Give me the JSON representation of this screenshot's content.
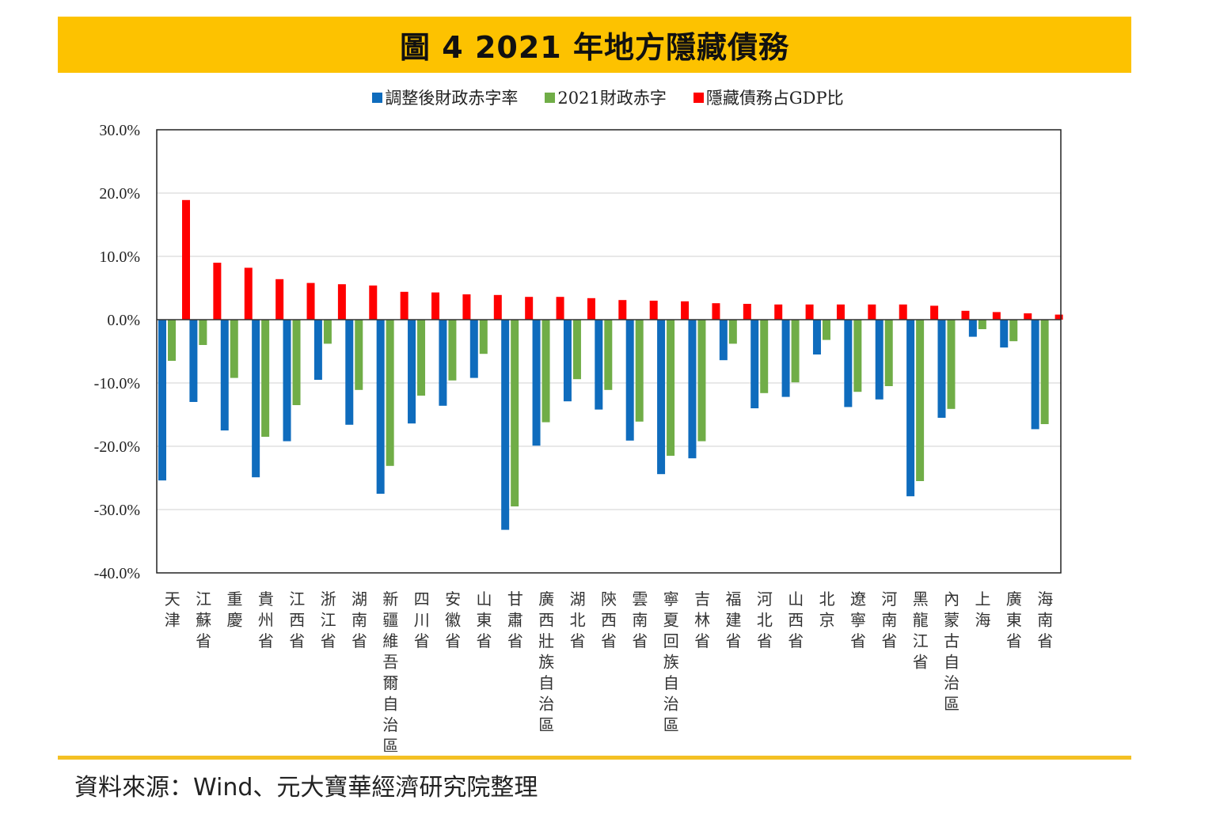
{
  "header": {
    "title": "圖 4 2021 年地方隱藏債務"
  },
  "footer": {
    "source": "資料來源：Wind、元大寶華經濟研究院整理"
  },
  "colors": {
    "header_bg": "#fdc200",
    "footer_rule": "#f4c024"
  },
  "chart_data": {
    "type": "bar",
    "title": "圖 4 2021 年地方隱藏債務",
    "xlabel": "",
    "ylabel": "",
    "ylim": [
      -40,
      30
    ],
    "yticks": [
      30,
      20,
      10,
      0,
      -10,
      -20,
      -30,
      -40
    ],
    "ytick_labels": [
      "30.0%",
      "20.0%",
      "10.0%",
      "0.0%",
      "-10.0%",
      "-20.0%",
      "-30.0%",
      "-40.0%"
    ],
    "grid": true,
    "legend_position": "top",
    "categories": [
      "天津",
      "江蘇省",
      "重慶",
      "貴州省",
      "江西省",
      "浙江省",
      "湖南省",
      "新疆維吾爾自治區",
      "四川省",
      "安徽省",
      "山東省",
      "甘肅省",
      "廣西壯族自治區",
      "湖北省",
      "陝西省",
      "雲南省",
      "寧夏回族自治區",
      "吉林省",
      "福建省",
      "河北省",
      "山西省",
      "北京",
      "遼寧省",
      "河南省",
      "黑龍江省",
      "內蒙古自治區",
      "上海",
      "廣東省",
      "海南省"
    ],
    "series": [
      {
        "name": "調整後財政赤字率",
        "color": "#0f6cbd",
        "values": [
          -25.4,
          -13.0,
          -17.5,
          -24.9,
          -19.2,
          -9.5,
          -16.6,
          -27.5,
          -16.4,
          -13.6,
          -9.2,
          -33.2,
          -19.9,
          -12.9,
          -14.2,
          -19.1,
          -24.4,
          -21.9,
          -6.4,
          -14.0,
          -12.2,
          -5.5,
          -13.8,
          -12.6,
          -27.9,
          -15.5,
          -2.7,
          -4.4,
          -17.3
        ]
      },
      {
        "name": "2021財政赤字",
        "color": "#70ad47",
        "values": [
          -6.5,
          -4.0,
          -9.2,
          -18.5,
          -13.5,
          -3.8,
          -11.1,
          -23.1,
          -12.0,
          -9.6,
          -5.4,
          -29.5,
          -16.2,
          -9.4,
          -11.1,
          -16.1,
          -21.5,
          -19.2,
          -3.8,
          -11.6,
          -9.9,
          -3.2,
          -11.4,
          -10.5,
          -25.5,
          -14.1,
          -1.5,
          -3.4,
          -16.5
        ]
      },
      {
        "name": "隱藏債務占GDP比",
        "color": "#ff0000",
        "values": [
          18.9,
          9.0,
          8.2,
          6.4,
          5.8,
          5.6,
          5.4,
          4.4,
          4.3,
          4.0,
          3.9,
          3.6,
          3.6,
          3.4,
          3.1,
          3.0,
          2.9,
          2.6,
          2.5,
          2.4,
          2.4,
          2.4,
          2.4,
          2.4,
          2.2,
          1.4,
          1.2,
          1.0,
          0.8
        ]
      }
    ]
  }
}
